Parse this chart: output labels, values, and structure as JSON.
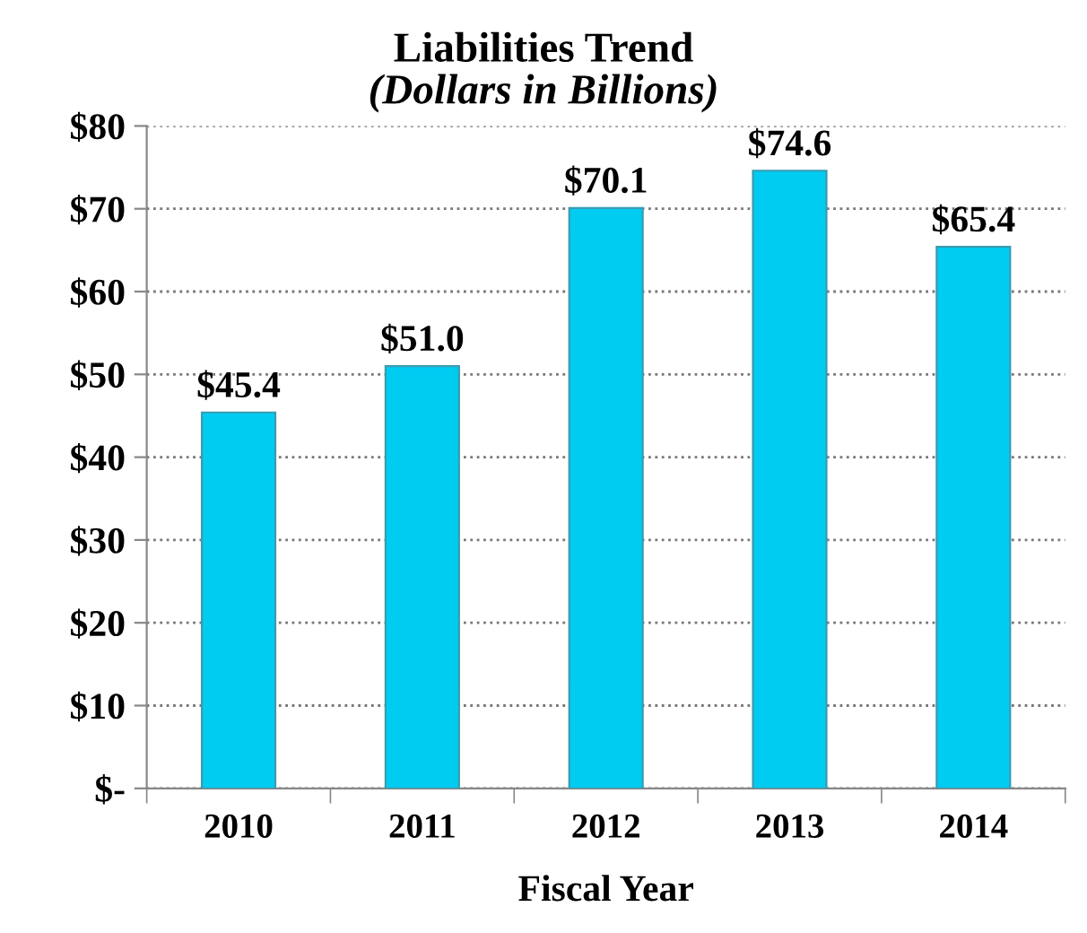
{
  "chart_data": {
    "type": "bar",
    "title": "Liabilities Trend",
    "subtitle": "(Dollars in Billions)",
    "xlabel": "Fiscal Year",
    "categories": [
      "2010",
      "2011",
      "2012",
      "2013",
      "2014"
    ],
    "values": [
      45.4,
      51.0,
      70.1,
      74.6,
      65.4
    ],
    "value_labels": [
      "$45.4",
      "$51.0",
      "$70.1",
      "$74.6",
      "$65.4"
    ],
    "color": "#00ccf2",
    "ylim": [
      0,
      80
    ],
    "yticks": [
      {
        "value": 0,
        "label": "$-"
      },
      {
        "value": 10,
        "label": "$10"
      },
      {
        "value": 20,
        "label": "$20"
      },
      {
        "value": 30,
        "label": "$30"
      },
      {
        "value": 40,
        "label": "$40"
      },
      {
        "value": 50,
        "label": "$50"
      },
      {
        "value": 60,
        "label": "$60"
      },
      {
        "value": 70,
        "label": "$70"
      },
      {
        "value": 80,
        "label": "$80"
      }
    ],
    "grid": "y"
  }
}
